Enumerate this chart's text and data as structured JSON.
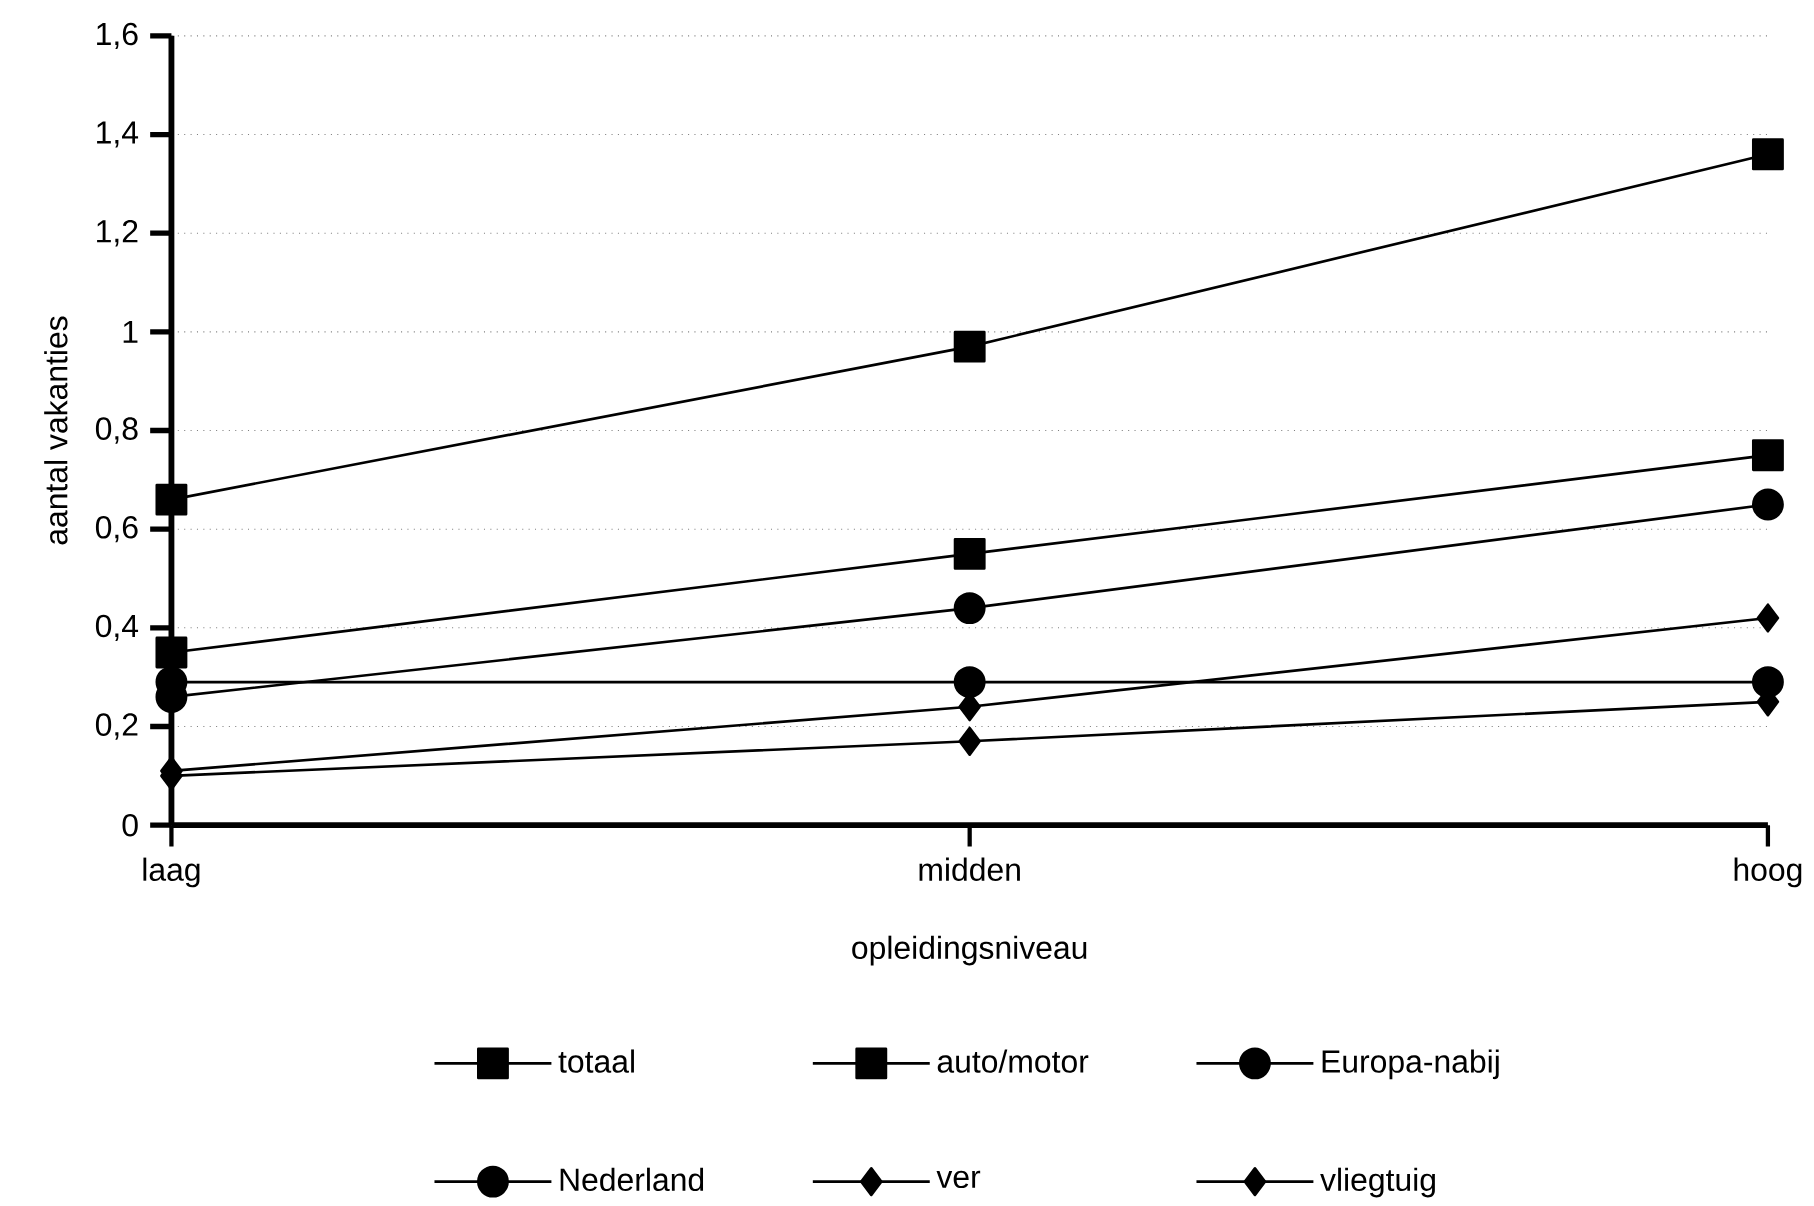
{
  "chart_data": {
    "type": "line",
    "xlabel": "opleidingsniveau",
    "ylabel": "aantal vakanties",
    "categories": [
      "laag",
      "midden",
      "hoog"
    ],
    "ylim": [
      0,
      1.6
    ],
    "yticks": [
      0,
      {
        "value": 0.2,
        "label": "0,2"
      },
      {
        "value": 0.4,
        "label": "0,4"
      },
      {
        "value": 0.6,
        "label": "0,6"
      },
      {
        "value": 0.8,
        "label": "0,8"
      },
      1,
      {
        "value": 1.2,
        "label": "1,2"
      },
      {
        "value": 1.4,
        "label": "1,4"
      },
      {
        "value": 1.6,
        "label": "1,6"
      }
    ],
    "grid": "y",
    "legend": "bottom",
    "line_style": "solid",
    "series": [
      {
        "name": "totaal",
        "color": "#000000",
        "marker": "square",
        "values": [
          0.66,
          0.97,
          1.36
        ]
      },
      {
        "name": "auto/motor",
        "color": "#000000",
        "marker": "square",
        "values": [
          0.35,
          0.55,
          0.75
        ]
      },
      {
        "name": "Europa-nabij",
        "color": "#000000",
        "marker": "circle",
        "values": [
          0.26,
          0.44,
          0.65
        ]
      },
      {
        "name": "Nederland",
        "color": "#000000",
        "marker": "circle",
        "values": [
          0.29,
          0.29,
          0.29
        ]
      },
      {
        "name": "ver",
        "color": "#000000",
        "marker": "diamond",
        "values": [
          0.11,
          0.24,
          0.42
        ]
      },
      {
        "name": "vliegtuig",
        "color": "#000000",
        "marker": "diamond",
        "values": [
          0.1,
          0.17,
          0.25
        ]
      }
    ]
  }
}
